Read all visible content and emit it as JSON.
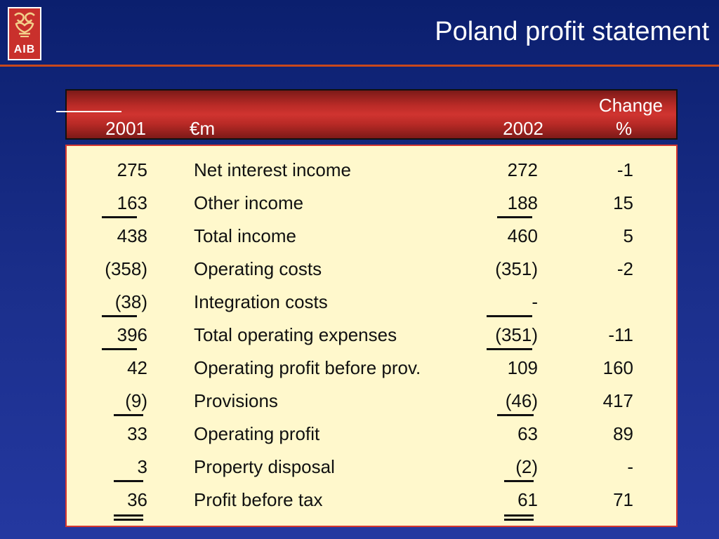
{
  "logo": {
    "text": "AIB"
  },
  "title": "Poland profit statement",
  "header": {
    "col1": "2001",
    "label": "€m",
    "col2": "2002",
    "change_top": "Change",
    "change_bottom": "%"
  },
  "rows": [
    {
      "y2001": "275",
      "label": "Net interest income",
      "y2002": "272",
      "change": "-1"
    },
    {
      "y2001": "163",
      "label": "Other income",
      "y2002": "188",
      "change": "15"
    },
    {
      "y2001": "438",
      "label": "Total income",
      "y2002": "460",
      "change": "5"
    },
    {
      "y2001": "(358)",
      "label": "Operating costs",
      "y2002": "(351)",
      "change": "-2"
    },
    {
      "y2001": "(38)",
      "label": "Integration costs",
      "y2002": "-",
      "change": ""
    },
    {
      "y2001": "396",
      "label": "Total operating expenses",
      "y2002": "(351)",
      "change": "-11"
    },
    {
      "y2001": "42",
      "label": "Operating profit before prov.",
      "y2002": "109",
      "change": "160"
    },
    {
      "y2001": "(9)",
      "label": "Provisions",
      "y2002": "(46)",
      "change": "417"
    },
    {
      "y2001": "33",
      "label": "Operating profit",
      "y2002": "63",
      "change": "89"
    },
    {
      "y2001": "3",
      "label": "Property disposal",
      "y2002": "(2)",
      "change": "-"
    },
    {
      "y2001": "36",
      "label": "Profit before tax",
      "y2002": "61",
      "change": "71"
    }
  ],
  "colors": {
    "background": "#1b2f8c",
    "accent_rule": "#c8481c",
    "header_red": "#d03430",
    "table_bg": "#fff8cc"
  }
}
